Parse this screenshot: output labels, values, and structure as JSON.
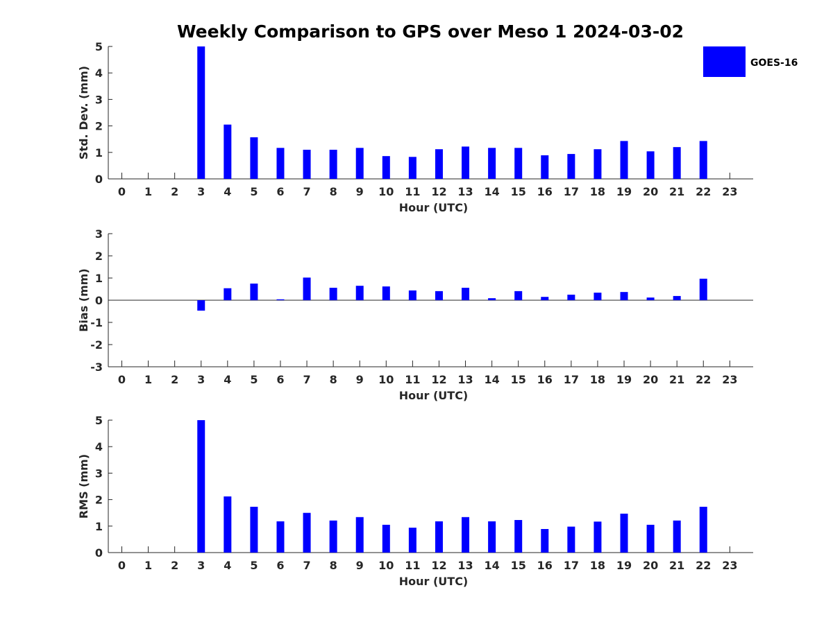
{
  "title": "Weekly Comparison to GPS over Meso 1 2024-03-02",
  "legend": {
    "label": "GOES-16",
    "color": "#0000ff",
    "placement": "top-right"
  },
  "chart_data": [
    {
      "type": "bar",
      "xlabel": "Hour (UTC)",
      "ylabel": "Std. Dev. (mm)",
      "ylim": [
        0,
        5
      ],
      "yticks": [
        "0",
        "1",
        "2",
        "3",
        "4",
        "5"
      ],
      "x": [
        "0",
        "1",
        "2",
        "3",
        "4",
        "5",
        "6",
        "7",
        "8",
        "9",
        "10",
        "11",
        "12",
        "13",
        "14",
        "15",
        "16",
        "17",
        "18",
        "19",
        "20",
        "21",
        "22",
        "23"
      ],
      "series": [
        {
          "name": "GOES-16",
          "values": [
            null,
            null,
            null,
            5.0,
            2.05,
            1.57,
            1.17,
            1.1,
            1.1,
            1.17,
            0.86,
            0.83,
            1.12,
            1.22,
            1.17,
            1.17,
            0.89,
            0.94,
            1.12,
            1.43,
            1.04,
            1.2,
            1.43,
            null
          ]
        }
      ]
    },
    {
      "type": "bar",
      "xlabel": "Hour (UTC)",
      "ylabel": "Bias (mm)",
      "ylim": [
        -3,
        3
      ],
      "yticks": [
        "-3",
        "-2",
        "-1",
        "0",
        "1",
        "2",
        "3"
      ],
      "x": [
        "0",
        "1",
        "2",
        "3",
        "4",
        "5",
        "6",
        "7",
        "8",
        "9",
        "10",
        "11",
        "12",
        "13",
        "14",
        "15",
        "16",
        "17",
        "18",
        "19",
        "20",
        "21",
        "22",
        "23"
      ],
      "series": [
        {
          "name": "GOES-16",
          "values": [
            null,
            null,
            null,
            -0.47,
            0.54,
            0.75,
            0.04,
            1.02,
            0.56,
            0.65,
            0.62,
            0.44,
            0.41,
            0.56,
            0.09,
            0.41,
            0.15,
            0.25,
            0.34,
            0.37,
            0.12,
            0.19,
            0.97,
            null
          ]
        }
      ]
    },
    {
      "type": "bar",
      "xlabel": "Hour (UTC)",
      "ylabel": "RMS (mm)",
      "ylim": [
        0,
        5
      ],
      "yticks": [
        "0",
        "1",
        "2",
        "3",
        "4",
        "5"
      ],
      "x": [
        "0",
        "1",
        "2",
        "3",
        "4",
        "5",
        "6",
        "7",
        "8",
        "9",
        "10",
        "11",
        "12",
        "13",
        "14",
        "15",
        "16",
        "17",
        "18",
        "19",
        "20",
        "21",
        "22",
        "23"
      ],
      "series": [
        {
          "name": "GOES-16",
          "values": [
            null,
            null,
            null,
            5.0,
            2.12,
            1.73,
            1.18,
            1.5,
            1.21,
            1.34,
            1.05,
            0.94,
            1.18,
            1.34,
            1.18,
            1.23,
            0.89,
            0.98,
            1.17,
            1.47,
            1.05,
            1.21,
            1.73,
            null
          ]
        }
      ]
    }
  ]
}
